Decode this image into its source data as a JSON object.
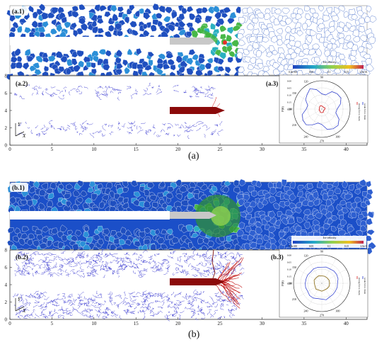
{
  "figure": {
    "caption_a": "(a)",
    "caption_b": "(b)"
  },
  "panel_a": {
    "label_map": "(a.1)",
    "label_chain": "(a.2)",
    "label_polar": "(a.3)",
    "colorbar_title": "Ice velocity",
    "colorbar_ticks": [
      "0.0e+00",
      "0.05",
      "0.1",
      "0.15",
      "2.0e-01"
    ]
  },
  "panel_b": {
    "label_map": "(b.1)",
    "label_chain": "(b.2)",
    "label_polar": "(b.3)",
    "colorbar_title": "Ice velocity",
    "colorbar_ticks": [
      "0.0e+00",
      "0.05",
      "0.1",
      "0.15",
      "2.0e-0"
    ]
  },
  "axes": {
    "x_ticks": [
      "0",
      "5",
      "10",
      "15",
      "20",
      "25",
      "30",
      "35",
      "40"
    ],
    "y_ticks": [
      "0",
      "2",
      "4",
      "6",
      "8"
    ],
    "axis_x_letter": "X",
    "axis_y_letter": "Y"
  },
  "polar": {
    "ylabel": "P(θ)",
    "angle_labels": [
      "90",
      "120",
      "150",
      "180",
      "210",
      "240",
      "270",
      "300"
    ],
    "radial_ticks": [
      "0.00",
      "0.05",
      "0.10",
      "0.15",
      "0.20"
    ],
    "legend_strong": "strong force chain",
    "legend_weak": "weak force chain"
  },
  "colors": {
    "ice_blue": "#1f4fbf",
    "ice_deep": "#0a2e9a",
    "ship_gray": "#c8c8c8",
    "ship_red": "#8b0a0a",
    "weak_chain": "#3a3ad0",
    "strong_chain": "#d01010"
  }
}
